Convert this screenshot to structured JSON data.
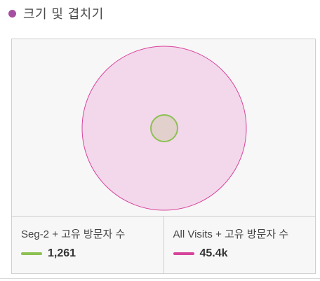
{
  "header": {
    "title": "크기 및 겹치기",
    "dot_color": "#a54fa0"
  },
  "legend": [
    {
      "label": "Seg-2 + 고유 방문자 수",
      "value": "1,261",
      "color": "#8cc152"
    },
    {
      "label": "All Visits + 고유 방문자 수",
      "value": "45.4k",
      "color": "#d7449b"
    }
  ],
  "colors": {
    "large_fill": "#f3d8ec",
    "large_stroke": "#d7449b",
    "small_fill": "#e2d0cd",
    "small_stroke": "#8cc152"
  }
}
